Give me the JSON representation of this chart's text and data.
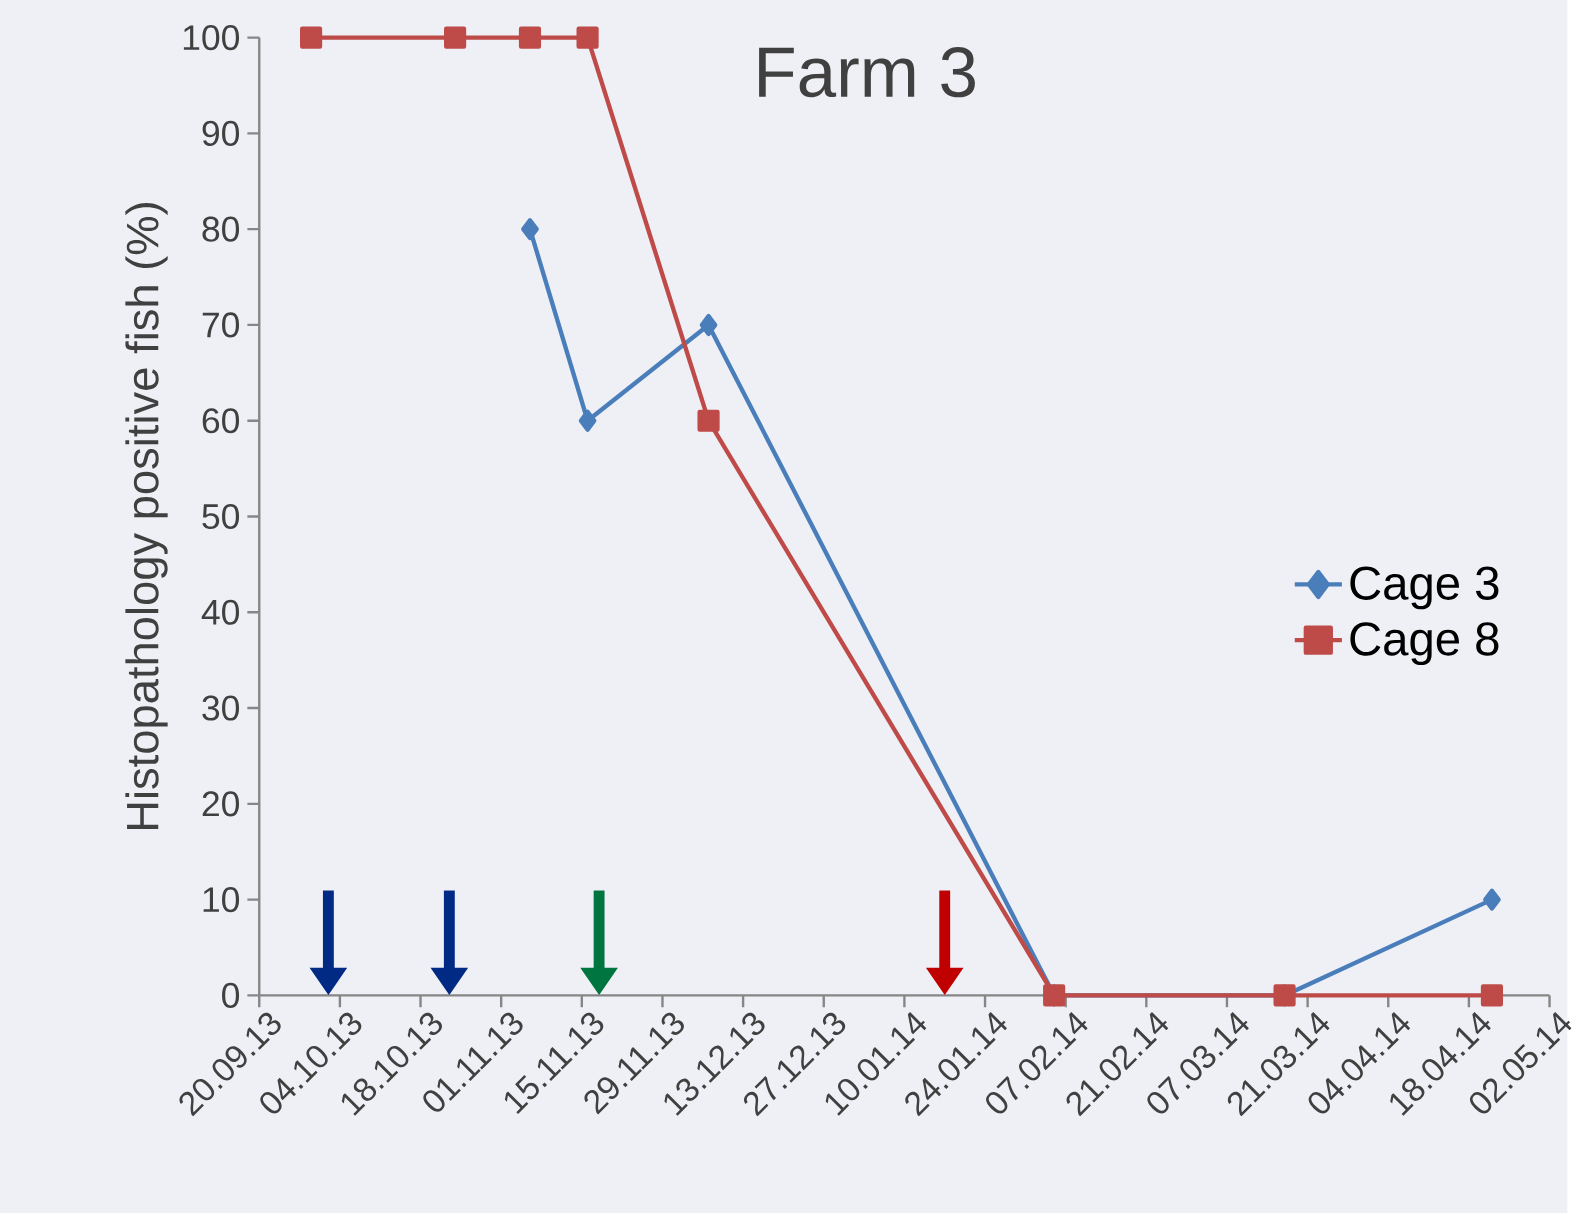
{
  "chart_data": {
    "type": "line",
    "title": "Farm 3",
    "ylabel": "Histopathology positive fish (%)",
    "xlim": [
      "2013-09-20",
      "2014-05-02"
    ],
    "ylim": [
      0,
      100
    ],
    "yticks": [
      0,
      10,
      20,
      30,
      40,
      50,
      60,
      70,
      80,
      90,
      100
    ],
    "xticks": [
      {
        "value": "2013-09-20",
        "label": "20.09.13"
      },
      {
        "value": "2013-10-04",
        "label": "04.10.13"
      },
      {
        "value": "2013-10-18",
        "label": "18.10.13"
      },
      {
        "value": "2013-11-01",
        "label": "01.11.13"
      },
      {
        "value": "2013-11-15",
        "label": "15.11.13"
      },
      {
        "value": "2013-11-29",
        "label": "29.11.13"
      },
      {
        "value": "2013-12-13",
        "label": "13.12.13"
      },
      {
        "value": "2013-12-27",
        "label": "27.12.13"
      },
      {
        "value": "2014-01-10",
        "label": "10.01.14"
      },
      {
        "value": "2014-01-24",
        "label": "24.01.14"
      },
      {
        "value": "2014-02-07",
        "label": "07.02.14"
      },
      {
        "value": "2014-02-21",
        "label": "21.02.14"
      },
      {
        "value": "2014-03-07",
        "label": "07.03.14"
      },
      {
        "value": "2014-03-21",
        "label": "21.03.14"
      },
      {
        "value": "2014-04-04",
        "label": "04.04.14"
      },
      {
        "value": "2014-04-18",
        "label": "18.04.14"
      },
      {
        "value": "2014-05-02",
        "label": "02.05.14"
      }
    ],
    "series": [
      {
        "name": "Cage 3",
        "color": "#4a7ebb",
        "marker": "diamond",
        "x": [
          "2013-11-06",
          "2013-11-16",
          "2013-12-07",
          "2014-02-05",
          "2014-03-17",
          "2014-04-22"
        ],
        "values": [
          80,
          60,
          70,
          0,
          0,
          10
        ]
      },
      {
        "name": "Cage 8",
        "color": "#be4b48",
        "marker": "square",
        "x": [
          "2013-09-29",
          "2013-10-24",
          "2013-11-06",
          "2013-11-16",
          "2013-12-07",
          "2014-02-05",
          "2014-03-17",
          "2014-04-22"
        ],
        "values": [
          100,
          100,
          100,
          100,
          60,
          0,
          0,
          0
        ]
      }
    ],
    "ref_lines": [
      {
        "axis": "x",
        "value": "2013-10-02",
        "color": "#002a84"
      },
      {
        "axis": "x",
        "value": "2013-10-23",
        "color": "#002a84"
      },
      {
        "axis": "x",
        "value": "2013-11-18",
        "color": "#00753f"
      },
      {
        "axis": "x",
        "value": "2014-01-17",
        "color": "#c00000"
      }
    ],
    "legend": "right",
    "grid": false
  }
}
